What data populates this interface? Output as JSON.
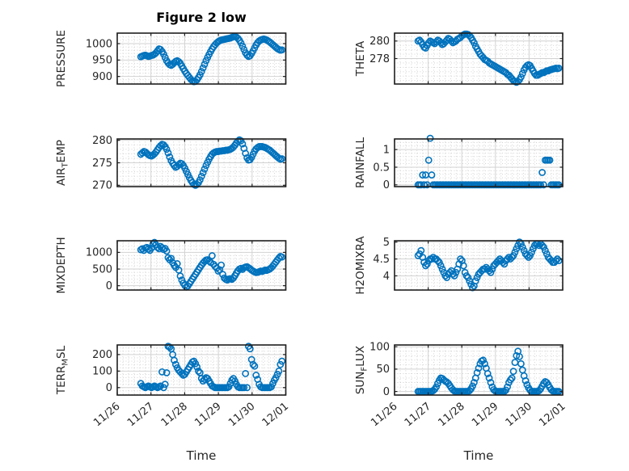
{
  "figure": {
    "title": "Figure 2 low",
    "xlabel": "Time",
    "background_color": "#ffffff"
  },
  "style": {
    "marker_color": "#0072BD",
    "axis_color": "#1f1f1f",
    "text_color": "#262626",
    "major_grid_color": "#d2d2d2",
    "minor_grid_color": "#c9c9c9"
  },
  "x_axis": {
    "tick_labels": [
      "11/26",
      "11/27",
      "11/28",
      "11/29",
      "11/30",
      "12/01"
    ],
    "limits_days": [
      0,
      5
    ],
    "minor_per_day": 6
  },
  "chart_data": [
    {
      "id": "pressure",
      "type": "scatter",
      "grid": {
        "row": 0,
        "col": 0
      },
      "ylabel": "PRESSURE",
      "ylabel_parts": [
        [
          "PRESSURE",
          false
        ]
      ],
      "yticks": [
        900,
        950,
        1000
      ],
      "ytick_labels": [
        "900",
        "950",
        "1000"
      ],
      "ylim": [
        877,
        1032
      ],
      "y_minor_divisions": 5,
      "x_start_days": 0.7,
      "x_step_days": 0.045,
      "values": [
        960,
        962,
        964,
        965,
        963,
        961,
        962,
        964,
        965,
        968,
        972,
        978,
        984,
        982,
        976,
        968,
        958,
        948,
        941,
        936,
        934,
        937,
        942,
        946,
        948,
        945,
        940,
        932,
        924,
        916,
        909,
        903,
        897,
        891,
        887,
        884,
        885,
        890,
        897,
        905,
        915,
        926,
        937,
        948,
        958,
        967,
        976,
        984,
        991,
        997,
        1002,
        1006,
        1009,
        1011,
        1012,
        1013,
        1014,
        1015,
        1016,
        1017,
        1019,
        1021,
        1022,
        1020,
        1016,
        1010,
        1002,
        992,
        982,
        972,
        965,
        961,
        963,
        970,
        978,
        987,
        996,
        1003,
        1008,
        1011,
        1013,
        1014,
        1013,
        1011,
        1008,
        1005,
        1001,
        997,
        993,
        989,
        985,
        982,
        980,
        981
      ]
    },
    {
      "id": "theta",
      "type": "scatter",
      "grid": {
        "row": 0,
        "col": 1
      },
      "ylabel": "THETA",
      "ylabel_parts": [
        [
          "THETA",
          false
        ]
      ],
      "yticks": [
        278,
        280
      ],
      "ytick_labels": [
        "278",
        "280"
      ],
      "ylim": [
        275.1,
        280.9
      ],
      "y_minor_divisions": 4,
      "x_start_days": 0.7,
      "x_step_days": 0.045,
      "values": [
        280.0,
        280.1,
        279.9,
        279.6,
        279.3,
        279.2,
        279.5,
        279.8,
        280.0,
        279.9,
        279.8,
        279.7,
        279.9,
        280.1,
        280.0,
        279.8,
        279.6,
        279.7,
        279.9,
        280.1,
        280.3,
        280.2,
        280.0,
        279.8,
        279.9,
        280.0,
        280.2,
        280.3,
        280.4,
        280.6,
        280.7,
        280.8,
        280.8,
        280.75,
        280.6,
        280.4,
        280.1,
        279.8,
        279.4,
        279.1,
        278.8,
        278.5,
        278.3,
        278.1,
        277.9,
        277.8,
        277.7,
        277.5,
        277.4,
        277.3,
        277.2,
        277.1,
        277.0,
        276.9,
        276.8,
        276.7,
        276.6,
        276.5,
        276.4,
        276.2,
        276.1,
        275.9,
        275.7,
        275.5,
        275.4,
        275.3,
        275.4,
        275.6,
        275.9,
        276.3,
        276.7,
        277.0,
        277.2,
        277.3,
        277.2,
        276.9,
        276.6,
        276.3,
        276.1,
        276.1,
        276.2,
        276.3,
        276.4,
        276.4,
        276.5,
        276.6,
        276.6,
        276.7,
        276.75,
        276.8,
        276.85,
        276.9,
        276.85,
        276.9
      ]
    },
    {
      "id": "air-temp",
      "type": "scatter",
      "grid": {
        "row": 1,
        "col": 0
      },
      "ylabel": "AIR_TEMP",
      "ylabel_parts": [
        [
          "AIR",
          false
        ],
        [
          "T",
          true
        ],
        [
          "EMP",
          false
        ]
      ],
      "yticks": [
        270,
        275,
        280
      ],
      "ytick_labels": [
        "270",
        "275",
        "280"
      ],
      "ylim": [
        269.7,
        280.3
      ],
      "y_minor_divisions": 5,
      "x_start_days": 0.7,
      "x_step_days": 0.045,
      "values": [
        276.9,
        277.2,
        277.5,
        277.4,
        277.1,
        276.8,
        276.6,
        276.5,
        276.7,
        277.0,
        277.4,
        277.9,
        278.4,
        278.8,
        279.1,
        279.0,
        278.6,
        278.0,
        277.2,
        276.3,
        275.5,
        274.9,
        274.4,
        274.0,
        274.2,
        274.6,
        274.9,
        274.8,
        274.4,
        273.8,
        273.1,
        272.4,
        271.7,
        271.1,
        270.6,
        270.2,
        270.0,
        270.2,
        270.6,
        271.2,
        272.0,
        272.8,
        273.6,
        274.4,
        275.1,
        275.8,
        276.4,
        276.9,
        277.2,
        277.4,
        277.5,
        277.5,
        277.6,
        277.6,
        277.7,
        277.7,
        277.8,
        277.8,
        277.9,
        278.0,
        278.2,
        278.5,
        278.9,
        279.4,
        279.8,
        280.1,
        279.9,
        279.2,
        278.2,
        277.1,
        276.1,
        275.6,
        275.7,
        276.2,
        276.9,
        277.6,
        278.1,
        278.4,
        278.6,
        278.6,
        278.6,
        278.5,
        278.4,
        278.2,
        278.0,
        277.8,
        277.5,
        277.2,
        276.9,
        276.6,
        276.3,
        276.0,
        275.8,
        275.9
      ]
    },
    {
      "id": "rainfall",
      "type": "scatter",
      "grid": {
        "row": 1,
        "col": 1
      },
      "ylabel": "RAINFALL",
      "ylabel_parts": [
        [
          "RAINFALL",
          false
        ]
      ],
      "yticks": [
        0,
        0.5,
        1
      ],
      "ytick_labels": [
        "0",
        "0.5",
        "1"
      ],
      "ylim": [
        -0.05,
        1.3
      ],
      "y_minor_divisions": 5,
      "x_start_days": 0.7,
      "x_step_days": 0.045,
      "values": [
        0,
        0,
        0,
        0.28,
        0,
        0.28,
        0,
        0.7,
        1.32,
        0.28,
        0,
        0,
        0,
        0,
        0,
        0,
        0,
        0,
        0,
        0,
        0,
        0,
        0,
        0,
        0,
        0,
        0,
        0,
        0,
        0,
        0,
        0,
        0,
        0,
        0,
        0,
        0,
        0,
        0,
        0,
        0,
        0,
        0,
        0,
        0,
        0,
        0,
        0,
        0,
        0,
        0,
        0,
        0,
        0,
        0,
        0,
        0,
        0,
        0,
        0,
        0,
        0,
        0,
        0,
        0,
        0,
        0,
        0,
        0,
        0,
        0,
        0,
        0,
        0,
        0,
        0,
        0,
        0,
        0,
        0,
        0,
        0,
        0.35,
        0,
        0.7,
        0.7,
        0.7,
        0.7,
        0,
        0,
        0,
        0,
        0,
        0
      ]
    },
    {
      "id": "mixdepth",
      "type": "scatter",
      "grid": {
        "row": 2,
        "col": 0
      },
      "ylabel": "MIXDEPTH",
      "ylabel_parts": [
        [
          "MIXDEPTH",
          false
        ]
      ],
      "yticks": [
        0,
        500,
        1000
      ],
      "ytick_labels": [
        "0",
        "500",
        "1000"
      ],
      "ylim": [
        -130,
        1350
      ],
      "y_minor_divisions": 5,
      "x_start_days": 0.7,
      "x_step_days": 0.045,
      "values": [
        1080,
        1110,
        1060,
        1130,
        1150,
        1100,
        1060,
        1130,
        1250,
        1300,
        1230,
        1150,
        1110,
        1180,
        1140,
        1090,
        1120,
        1040,
        840,
        780,
        820,
        690,
        610,
        550,
        660,
        470,
        290,
        170,
        80,
        10,
        -40,
        -10,
        60,
        130,
        200,
        270,
        340,
        410,
        480,
        550,
        620,
        680,
        730,
        770,
        780,
        740,
        700,
        900,
        640,
        580,
        530,
        440,
        480,
        620,
        340,
        230,
        190,
        170,
        200,
        210,
        190,
        230,
        300,
        380,
        450,
        500,
        520,
        490,
        540,
        560,
        570,
        540,
        510,
        470,
        440,
        415,
        395,
        400,
        420,
        440,
        430,
        450,
        470,
        460,
        480,
        500,
        540,
        590,
        650,
        710,
        770,
        830,
        880,
        860
      ]
    },
    {
      "id": "h2omixra",
      "type": "scatter",
      "grid": {
        "row": 2,
        "col": 1
      },
      "ylabel": "H2OMIXRA",
      "ylabel_parts": [
        [
          "H2OMIXRA",
          false
        ]
      ],
      "yticks": [
        4,
        4.5,
        5
      ],
      "ytick_labels": [
        "4",
        "4.5",
        "5"
      ],
      "ylim": [
        3.58,
        5.04
      ],
      "y_minor_divisions": 5,
      "x_start_days": 0.7,
      "x_step_days": 0.045,
      "values": [
        4.6,
        4.65,
        4.75,
        4.55,
        4.4,
        4.3,
        4.35,
        4.45,
        4.5,
        4.5,
        4.55,
        4.5,
        4.5,
        4.45,
        4.4,
        4.3,
        4.2,
        4.1,
        4.0,
        3.95,
        4.05,
        4.1,
        4.15,
        4.05,
        4.0,
        4.1,
        4.2,
        4.35,
        4.5,
        4.45,
        4.3,
        4.1,
        4.0,
        3.95,
        3.85,
        3.75,
        3.65,
        3.7,
        3.85,
        3.95,
        4.05,
        4.1,
        4.15,
        4.2,
        4.2,
        4.25,
        4.2,
        4.15,
        4.1,
        4.2,
        4.3,
        4.35,
        4.4,
        4.45,
        4.5,
        4.45,
        4.4,
        4.35,
        4.45,
        4.5,
        4.55,
        4.5,
        4.55,
        4.6,
        4.7,
        4.8,
        4.9,
        5.0,
        4.95,
        4.85,
        4.75,
        4.65,
        4.6,
        4.55,
        4.6,
        4.7,
        4.8,
        4.9,
        4.95,
        4.95,
        4.9,
        4.95,
        4.9,
        4.85,
        4.75,
        4.65,
        4.55,
        4.5,
        4.45,
        4.4,
        4.4,
        4.45,
        4.5,
        4.45
      ]
    },
    {
      "id": "terr-msl",
      "type": "scatter",
      "grid": {
        "row": 3,
        "col": 0
      },
      "ylabel": "TERR_MSL",
      "ylabel_parts": [
        [
          "TERR",
          false
        ],
        [
          "M",
          true
        ],
        [
          "SL",
          false
        ]
      ],
      "yticks": [
        0,
        100,
        200
      ],
      "ytick_labels": [
        "0",
        "100",
        "200"
      ],
      "ylim": [
        -45,
        258
      ],
      "y_minor_divisions": 5,
      "x_start_days": 0.7,
      "x_step_days": 0.045,
      "values": [
        25,
        10,
        5,
        0,
        5,
        10,
        5,
        0,
        5,
        10,
        5,
        0,
        5,
        10,
        95,
        0,
        20,
        90,
        250,
        245,
        235,
        200,
        165,
        140,
        120,
        105,
        95,
        85,
        75,
        80,
        95,
        110,
        125,
        140,
        155,
        160,
        145,
        125,
        100,
        90,
        55,
        40,
        50,
        60,
        55,
        40,
        25,
        10,
        5,
        0,
        0,
        0,
        0,
        0,
        0,
        0,
        0,
        0,
        5,
        25,
        45,
        55,
        40,
        20,
        5,
        0,
        0,
        0,
        0,
        85,
        0,
        250,
        235,
        170,
        140,
        130,
        75,
        50,
        20,
        5,
        0,
        0,
        0,
        0,
        0,
        0,
        5,
        25,
        45,
        60,
        80,
        100,
        140,
        160
      ]
    },
    {
      "id": "sun-flux",
      "type": "scatter",
      "grid": {
        "row": 3,
        "col": 1
      },
      "ylabel": "SUN_FLUX",
      "ylabel_parts": [
        [
          "SUN",
          false
        ],
        [
          "F",
          true
        ],
        [
          "LUX",
          false
        ]
      ],
      "yticks": [
        0,
        50,
        100
      ],
      "ytick_labels": [
        "0",
        "50",
        "100"
      ],
      "ylim": [
        -8,
        104
      ],
      "y_minor_divisions": 5,
      "x_start_days": 0.7,
      "x_step_days": 0.045,
      "values": [
        0,
        0,
        0,
        0,
        0,
        0,
        0,
        0,
        0,
        0,
        2,
        5,
        10,
        18,
        25,
        30,
        29,
        26,
        23,
        21,
        18,
        13,
        8,
        4,
        1,
        0,
        0,
        0,
        0,
        0,
        0,
        0,
        0,
        0,
        2,
        6,
        12,
        20,
        30,
        42,
        52,
        62,
        68,
        70,
        62,
        52,
        40,
        30,
        20,
        10,
        4,
        1,
        0,
        0,
        0,
        0,
        0,
        0,
        3,
        10,
        20,
        26,
        30,
        45,
        65,
        80,
        90,
        78,
        62,
        48,
        35,
        24,
        15,
        8,
        3,
        0,
        0,
        0,
        0,
        0,
        2,
        6,
        12,
        18,
        22,
        20,
        15,
        9,
        4,
        1,
        0,
        0,
        0,
        0
      ]
    }
  ]
}
